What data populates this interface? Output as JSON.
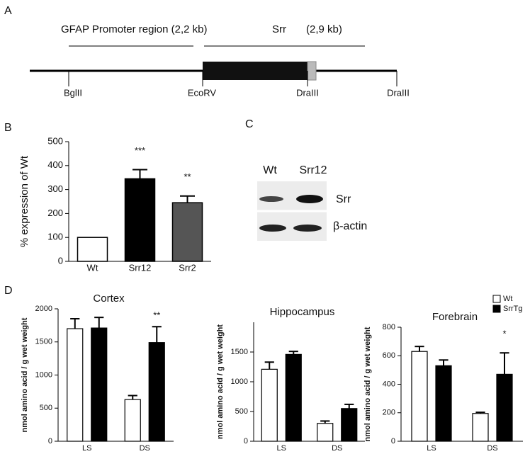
{
  "panel_labels": [
    "A",
    "B",
    "C",
    "D"
  ],
  "panel_a": {
    "region_label": "GFAP Promoter region (2,2 kb)",
    "gene_label": "Srr",
    "gene_size": "(2,9 kb)",
    "sites": [
      "BglII",
      "EcoRV",
      "DraIII",
      "DraIII"
    ]
  },
  "panel_c": {
    "lanes": [
      "Wt",
      "Srr12"
    ],
    "bands": [
      "Srr",
      "β-actin"
    ]
  },
  "chart_data": [
    {
      "type": "bar",
      "ylabel": "% expression of Wt",
      "categories": [
        "Wt",
        "Srr12",
        "Srr2"
      ],
      "values": [
        100,
        345,
        245
      ],
      "errors": [
        0,
        38,
        28
      ],
      "colors": [
        "#ffffff",
        "#000000",
        "#555555"
      ],
      "annotations": [
        null,
        "***",
        "**"
      ],
      "ylim": [
        0,
        500
      ],
      "yticks": [
        0,
        100,
        200,
        300,
        400,
        500
      ]
    },
    {
      "type": "grouped-bar",
      "title": "Cortex",
      "ylabel": "nmol amino acid / g wet weight",
      "categories": [
        "LS",
        "DS"
      ],
      "series": [
        {
          "name": "Wt",
          "color": "#ffffff",
          "values": [
            1700,
            630
          ],
          "errors": [
            150,
            60
          ]
        },
        {
          "name": "SrrTg",
          "color": "#000000",
          "values": [
            1710,
            1490
          ],
          "errors": [
            160,
            240
          ]
        }
      ],
      "annotations": [
        null,
        "**"
      ],
      "ylim": [
        0,
        2000
      ],
      "yticks": [
        0,
        500,
        1000,
        1500,
        2000
      ]
    },
    {
      "type": "grouped-bar",
      "title": "Hippocampus",
      "ylabel": "nmol amino acid / g wet weight",
      "categories": [
        "LS",
        "DS"
      ],
      "series": [
        {
          "name": "Wt",
          "color": "#ffffff",
          "values": [
            1210,
            300
          ],
          "errors": [
            120,
            40
          ]
        },
        {
          "name": "SrrTg",
          "color": "#000000",
          "values": [
            1460,
            550
          ],
          "errors": [
            50,
            70
          ]
        }
      ],
      "ylim": [
        0,
        2000
      ],
      "yticks": [
        0,
        500,
        1000,
        1500
      ]
    },
    {
      "type": "grouped-bar",
      "title": "Forebrain",
      "ylabel": "nmol amino acid / g wet weight",
      "categories": [
        "LS",
        "DS"
      ],
      "series": [
        {
          "name": "Wt",
          "color": "#ffffff",
          "values": [
            630,
            195
          ],
          "errors": [
            35,
            8
          ]
        },
        {
          "name": "SrrTg",
          "color": "#000000",
          "values": [
            530,
            470
          ],
          "errors": [
            40,
            150
          ]
        }
      ],
      "annotations": [
        null,
        "*"
      ],
      "ylim": [
        0,
        800
      ],
      "yticks": [
        0,
        200,
        400,
        600,
        800
      ],
      "legend": "top-right"
    }
  ]
}
